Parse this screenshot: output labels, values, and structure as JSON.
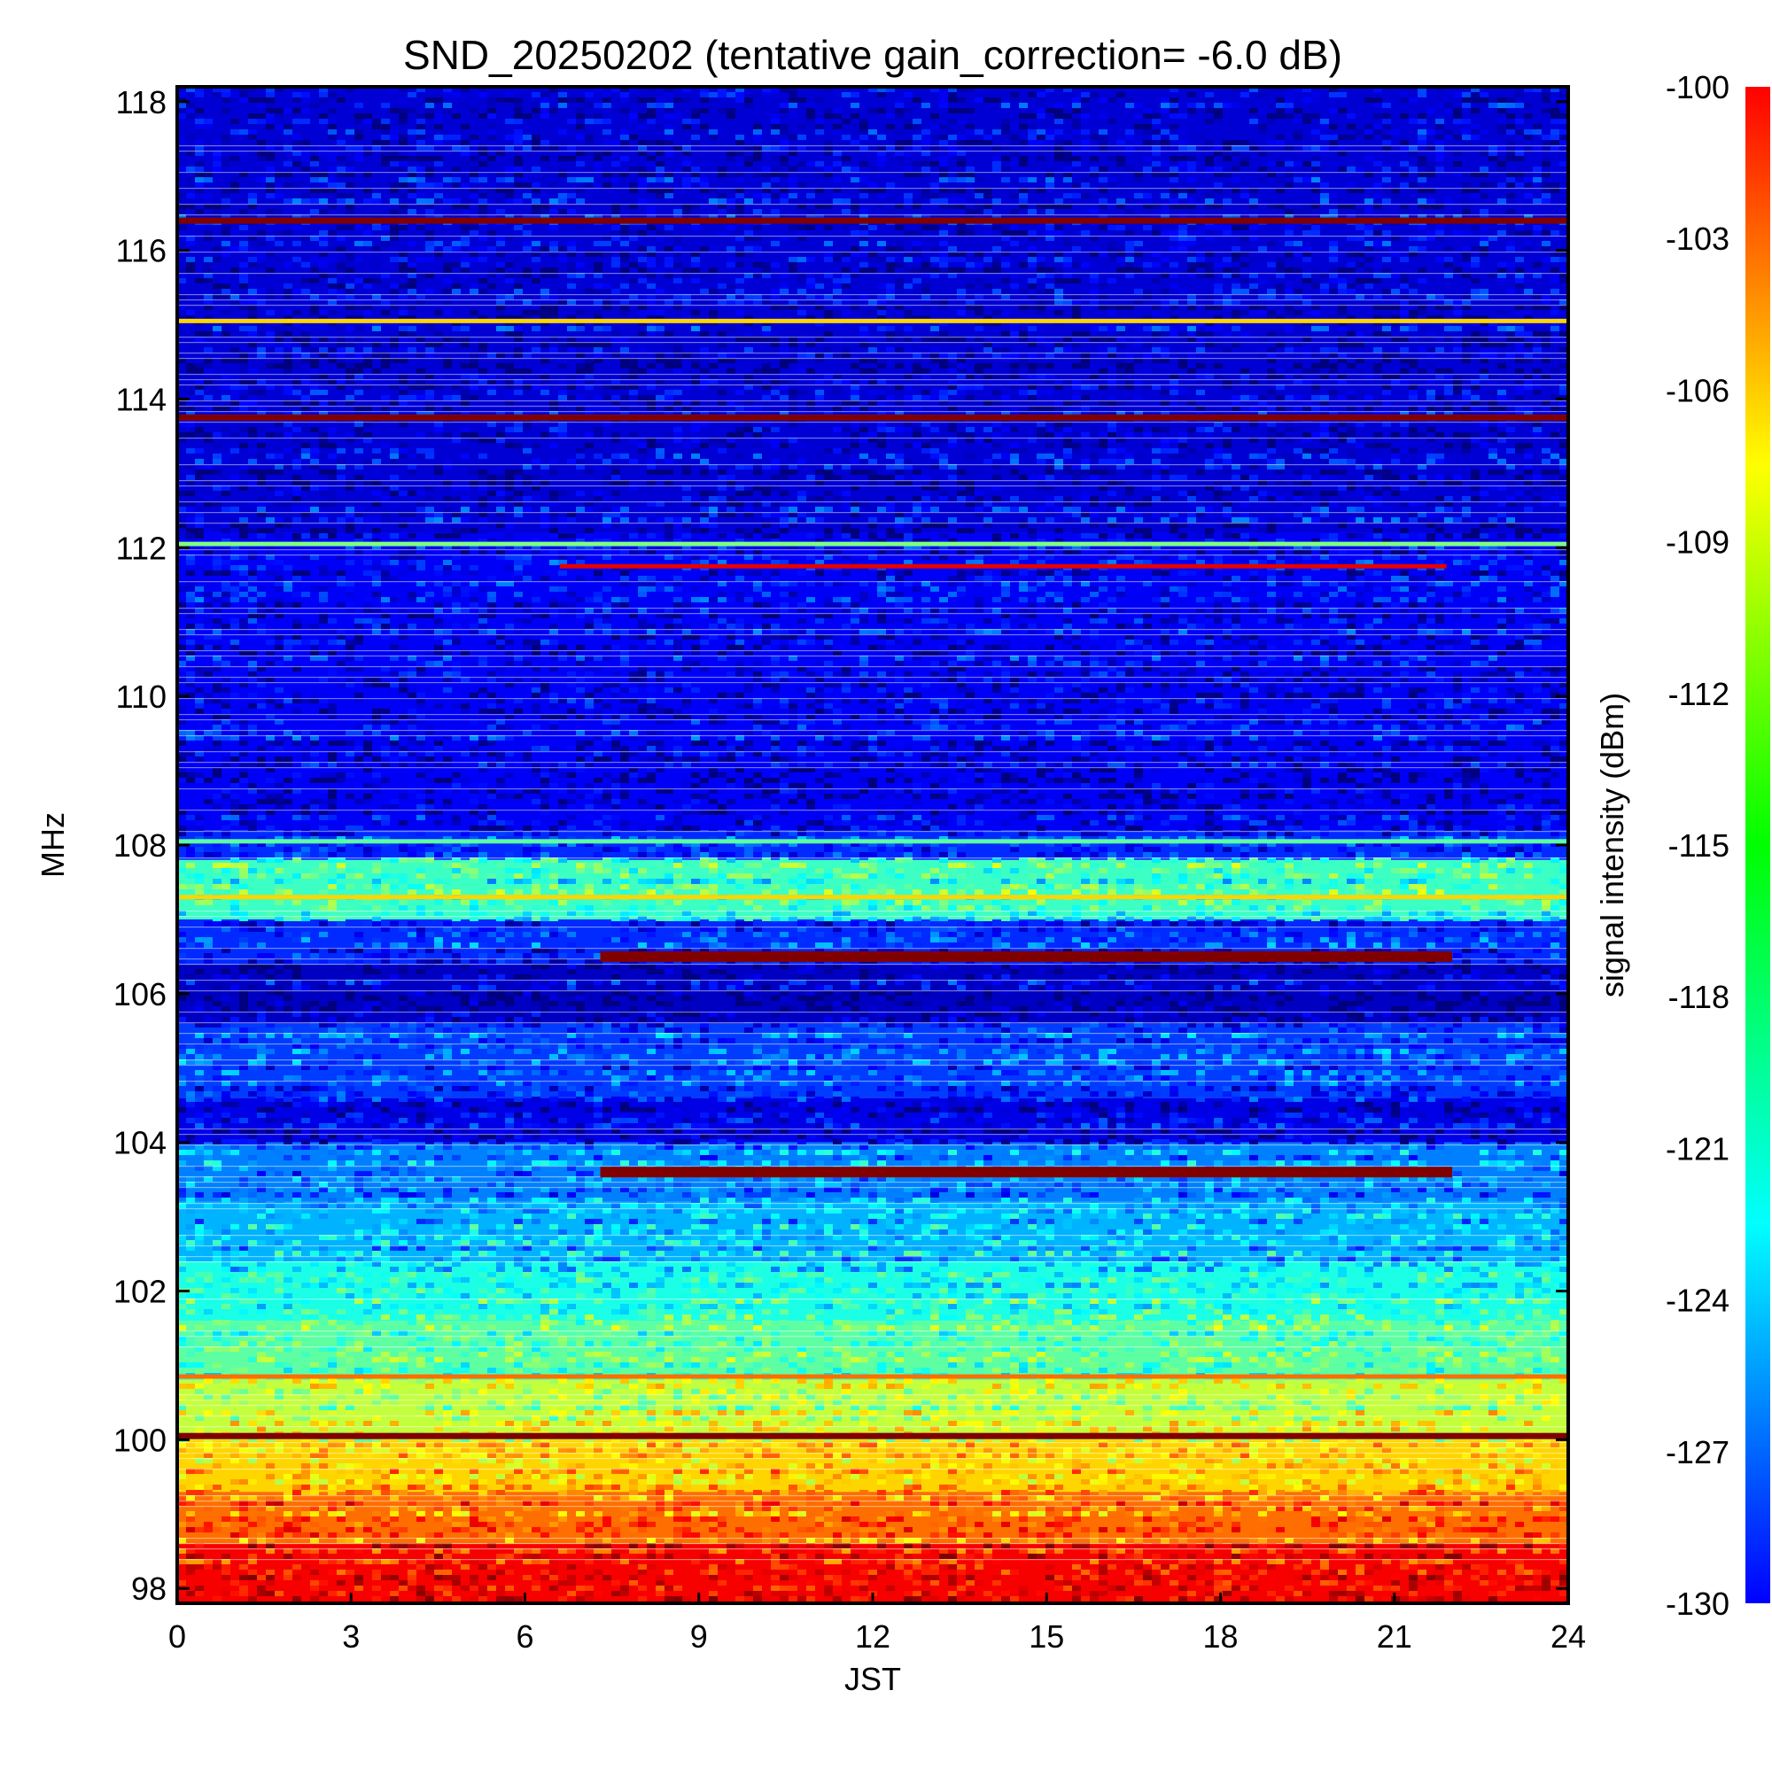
{
  "chart_data": {
    "type": "heatmap",
    "title": "SND_20250202 (tentative gain_correction= -6.0 dB)",
    "xlabel": "JST",
    "ylabel": "MHz",
    "xlim": [
      0,
      24
    ],
    "ylim": [
      97.8,
      118.2
    ],
    "x_ticks": [
      "0",
      "3",
      "6",
      "9",
      "12",
      "15",
      "18",
      "21",
      "24"
    ],
    "y_ticks": [
      "98",
      "100",
      "102",
      "104",
      "106",
      "108",
      "110",
      "112",
      "114",
      "116",
      "118"
    ],
    "colorbar": {
      "label": "signal intensity (dBm)",
      "range": [
        -130,
        -100
      ],
      "ticks": [
        "-100",
        "-103",
        "-106",
        "-109",
        "-112",
        "-115",
        "-118",
        "-121",
        "-124",
        "-127",
        "-130"
      ],
      "colormap": "jet"
    },
    "background_profile": [
      {
        "f_low": 97.8,
        "f_high": 98.6,
        "dbm": -103.5
      },
      {
        "f_low": 98.6,
        "f_high": 99.3,
        "dbm": -107
      },
      {
        "f_low": 99.3,
        "f_high": 100.0,
        "dbm": -110
      },
      {
        "f_low": 100.0,
        "f_high": 100.8,
        "dbm": -113
      },
      {
        "f_low": 100.8,
        "f_high": 101.6,
        "dbm": -116
      },
      {
        "f_low": 101.6,
        "f_high": 102.4,
        "dbm": -118
      },
      {
        "f_low": 102.4,
        "f_high": 103.2,
        "dbm": -121
      },
      {
        "f_low": 103.2,
        "f_high": 104.0,
        "dbm": -122.5
      },
      {
        "f_low": 104.0,
        "f_high": 104.6,
        "dbm": -127
      },
      {
        "f_low": 104.6,
        "f_high": 105.6,
        "dbm": -124.5
      },
      {
        "f_low": 105.6,
        "f_high": 106.4,
        "dbm": -128
      },
      {
        "f_low": 106.4,
        "f_high": 107.0,
        "dbm": -125
      },
      {
        "f_low": 107.0,
        "f_high": 107.8,
        "dbm": -117
      },
      {
        "f_low": 107.8,
        "f_high": 108.2,
        "dbm": -125
      },
      {
        "f_low": 108.2,
        "f_high": 112.2,
        "dbm": -126.5
      },
      {
        "f_low": 112.2,
        "f_high": 118.2,
        "dbm": -127.5
      }
    ],
    "signals": [
      {
        "freq_mhz": 116.4,
        "t_start": 0,
        "t_end": 24,
        "dbm": -100
      },
      {
        "freq_mhz": 115.05,
        "t_start": 0,
        "t_end": 24,
        "dbm": -110
      },
      {
        "freq_mhz": 113.75,
        "t_start": 0,
        "t_end": 24,
        "dbm": -100
      },
      {
        "freq_mhz": 112.05,
        "t_start": 0,
        "t_end": 24,
        "dbm": -115
      },
      {
        "freq_mhz": 111.75,
        "t_start": 6.6,
        "t_end": 21.9,
        "dbm": -103
      },
      {
        "freq_mhz": 108.05,
        "t_start": 0,
        "t_end": 24,
        "dbm": -116
      },
      {
        "freq_mhz": 107.3,
        "t_start": 0,
        "t_end": 24,
        "dbm": -110
      },
      {
        "freq_mhz": 106.5,
        "t_start": 7.3,
        "t_end": 22.0,
        "dbm": -100
      },
      {
        "freq_mhz": 103.6,
        "t_start": 7.3,
        "t_end": 22.0,
        "dbm": -100
      },
      {
        "freq_mhz": 100.85,
        "t_start": 0,
        "t_end": 24,
        "dbm": -107
      },
      {
        "freq_mhz": 100.05,
        "t_start": 0,
        "t_end": 24,
        "dbm": -100
      }
    ]
  }
}
